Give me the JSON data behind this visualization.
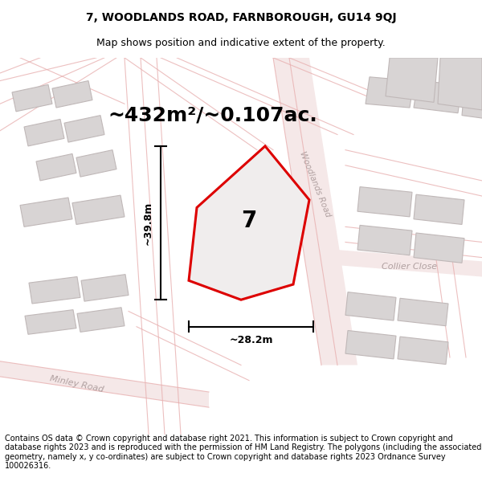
{
  "title_line1": "7, WOODLANDS ROAD, FARNBOROUGH, GU14 9QJ",
  "title_line2": "Map shows position and indicative extent of the property.",
  "area_text": "~432m²/~0.107ac.",
  "width_label": "~28.2m",
  "height_label": "~39.8m",
  "plot_number": "7",
  "road_label_woodlands": "Woodlands Road",
  "road_label_collier": "Collier Close",
  "road_label_minley": "Minley Road",
  "footer_text": "Contains OS data © Crown copyright and database right 2021. This information is subject to Crown copyright and database rights 2023 and is reproduced with the permission of HM Land Registry. The polygons (including the associated geometry, namely x, y co-ordinates) are subject to Crown copyright and database rights 2023 Ordnance Survey 100026316.",
  "map_bg": "#f5f2f2",
  "building_face": "#d8d4d4",
  "building_edge": "#c0b8b8",
  "road_line_color": "#e8b0b0",
  "highlight_fill": "#f0eded",
  "main_red": "#dd0000",
  "road_text_color": "#b0a0a0",
  "title_fontsize": 10,
  "subtitle_fontsize": 9,
  "area_fontsize": 18,
  "label_fontsize": 9,
  "footer_fontsize": 7
}
